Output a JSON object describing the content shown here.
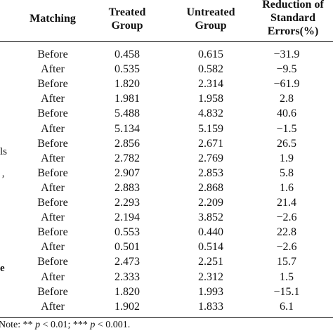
{
  "table": {
    "header": {
      "matching": "Matching",
      "treated_line1": "Treated",
      "treated_line2": "Group",
      "untreated_line1": "Untreated",
      "untreated_line2": "Group",
      "reduction_line1": "Reduction of",
      "reduction_line2": "Standard",
      "reduction_line3": "Errors(%)"
    },
    "rows": [
      {
        "matching": "Before",
        "treated": "0.458",
        "untreated": "0.615",
        "reduction": "−31.9"
      },
      {
        "matching": "After",
        "treated": "0.535",
        "untreated": "0.582",
        "reduction": "−9.5"
      },
      {
        "matching": "Before",
        "treated": "1.820",
        "untreated": "2.314",
        "reduction": "−61.9"
      },
      {
        "matching": "After",
        "treated": "1.981",
        "untreated": "1.958",
        "reduction": "2.8"
      },
      {
        "matching": "Before",
        "treated": "5.488",
        "untreated": "4.832",
        "reduction": "40.6"
      },
      {
        "matching": "After",
        "treated": "5.134",
        "untreated": "5.159",
        "reduction": "−1.5"
      },
      {
        "matching": "Before",
        "treated": "2.856",
        "untreated": "2.671",
        "reduction": "26.5"
      },
      {
        "matching": "After",
        "treated": "2.782",
        "untreated": "2.769",
        "reduction": "1.9"
      },
      {
        "matching": "Before",
        "treated": "2.907",
        "untreated": "2.853",
        "reduction": "5.8"
      },
      {
        "matching": "After",
        "treated": "2.883",
        "untreated": "2.868",
        "reduction": "1.6"
      },
      {
        "matching": "Before",
        "treated": "2.293",
        "untreated": "2.209",
        "reduction": "21.4"
      },
      {
        "matching": "After",
        "treated": "2.194",
        "untreated": "3.852",
        "reduction": "−2.6"
      },
      {
        "matching": "Before",
        "treated": "0.553",
        "untreated": "0.440",
        "reduction": "22.8"
      },
      {
        "matching": "After",
        "treated": "0.501",
        "untreated": "0.514",
        "reduction": "−2.6"
      },
      {
        "matching": "Before",
        "treated": "2.473",
        "untreated": "2.251",
        "reduction": "15.7"
      },
      {
        "matching": "After",
        "treated": "2.333",
        "untreated": "2.312",
        "reduction": "1.5"
      },
      {
        "matching": "Before",
        "treated": "1.820",
        "untreated": "1.993",
        "reduction": "−15.1"
      },
      {
        "matching": "After",
        "treated": "1.902",
        "untreated": "1.833",
        "reduction": "6.1"
      }
    ],
    "clipped_left_fragments": [
      "ls",
      "’",
      "e"
    ]
  },
  "note": {
    "prefix": "Note: ** ",
    "p1": "p",
    "mid1": " < 0.01; *** ",
    "p2": "p",
    "mid2": " < 0.001."
  }
}
